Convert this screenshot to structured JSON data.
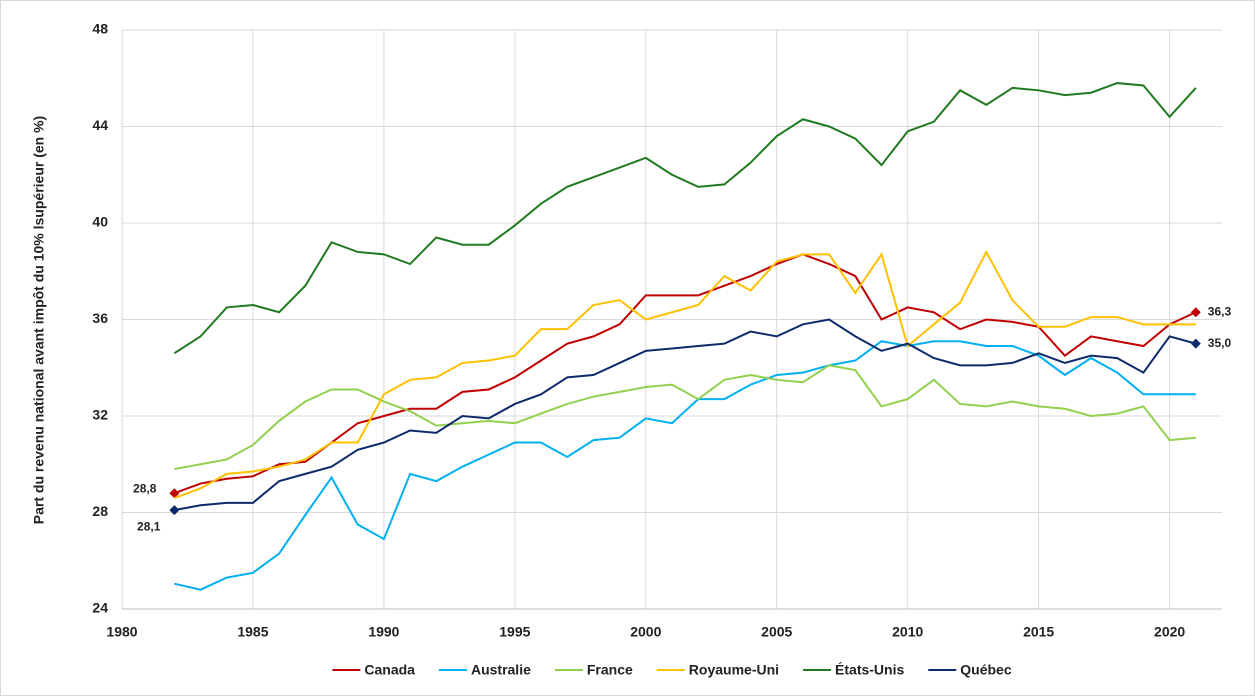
{
  "chart_data": {
    "type": "line",
    "y_label": "Part du revenu national avant impôt du 10% lsupérieur (en %)",
    "x": [
      1982,
      1983,
      1984,
      1985,
      1986,
      1987,
      1988,
      1989,
      1990,
      1991,
      1992,
      1993,
      1994,
      1995,
      1996,
      1997,
      1998,
      1999,
      2000,
      2001,
      2002,
      2003,
      2004,
      2005,
      2006,
      2007,
      2008,
      2009,
      2010,
      2011,
      2012,
      2013,
      2014,
      2015,
      2016,
      2017,
      2018,
      2019,
      2020,
      2021
    ],
    "xlim": [
      1980,
      2022
    ],
    "xticks": [
      1980,
      1985,
      1990,
      1995,
      2000,
      2005,
      2010,
      2015,
      2020
    ],
    "ylim": [
      24,
      48
    ],
    "yticks": [
      24,
      28,
      32,
      36,
      40,
      44,
      48
    ],
    "grid": true,
    "legend": "bottom",
    "series": [
      {
        "name": "Canada",
        "color": "#c00000",
        "values": [
          28.8,
          29.2,
          29.4,
          29.5,
          30.0,
          30.1,
          30.9,
          31.7,
          32.0,
          32.3,
          32.3,
          33.0,
          33.1,
          33.6,
          34.3,
          35.0,
          35.3,
          35.8,
          37.0,
          37.0,
          37.0,
          37.4,
          37.8,
          38.3,
          38.7,
          38.3,
          37.8,
          36.0,
          36.5,
          36.3,
          35.6,
          36.0,
          35.9,
          35.7,
          34.5,
          35.3,
          35.1,
          34.9,
          35.8,
          36.3
        ],
        "value_labels": [
          "28,8",
          null,
          null,
          null,
          null,
          null,
          null,
          null,
          null,
          null,
          null,
          null,
          null,
          null,
          null,
          null,
          null,
          null,
          null,
          null,
          null,
          null,
          null,
          null,
          null,
          null,
          null,
          null,
          null,
          null,
          null,
          null,
          null,
          null,
          null,
          null,
          null,
          null,
          null,
          "36,3"
        ]
      },
      {
        "name": "Australie",
        "color": "#00b0f0",
        "values": [
          25.05,
          24.8,
          25.3,
          25.5,
          26.3,
          27.9,
          29.45,
          27.5,
          26.9,
          29.6,
          29.3,
          29.9,
          30.4,
          30.9,
          30.9,
          30.3,
          31.0,
          31.1,
          31.9,
          31.7,
          32.7,
          32.7,
          33.3,
          33.7,
          33.8,
          34.1,
          34.3,
          35.1,
          34.9,
          35.1,
          35.1,
          34.9,
          34.9,
          34.5,
          33.7,
          34.4,
          33.8,
          32.9,
          32.9,
          32.9
        ]
      },
      {
        "name": "France",
        "color": "#92d050",
        "values": [
          29.8,
          30.0,
          30.2,
          30.8,
          31.8,
          32.6,
          33.1,
          33.1,
          32.6,
          32.2,
          31.6,
          31.7,
          31.8,
          31.7,
          32.1,
          32.5,
          32.8,
          33.0,
          33.2,
          33.3,
          32.7,
          33.5,
          33.7,
          33.5,
          33.4,
          34.1,
          33.9,
          32.4,
          32.7,
          33.5,
          32.5,
          32.4,
          32.6,
          32.4,
          32.3,
          32.0,
          32.1,
          32.4,
          31.0,
          31.1
        ]
      },
      {
        "name": "Royaume-Uni",
        "color": "#ffc000",
        "values": [
          28.6,
          29.0,
          29.6,
          29.7,
          29.9,
          30.2,
          30.9,
          30.9,
          32.9,
          33.5,
          33.6,
          34.2,
          34.3,
          34.5,
          35.6,
          35.6,
          36.6,
          36.8,
          36.0,
          36.3,
          36.6,
          37.8,
          37.2,
          38.4,
          38.7,
          38.7,
          37.1,
          38.7,
          34.9,
          35.8,
          36.7,
          38.8,
          36.8,
          35.7,
          35.7,
          36.1,
          36.1,
          35.8,
          35.8,
          35.8
        ]
      },
      {
        "name": "États-Unis",
        "color": "#217a21",
        "values": [
          34.6,
          35.3,
          36.5,
          36.6,
          36.3,
          37.4,
          39.2,
          38.8,
          38.7,
          38.3,
          39.4,
          39.1,
          39.1,
          39.9,
          40.8,
          41.5,
          41.9,
          42.3,
          42.7,
          42.0,
          41.5,
          41.6,
          42.5,
          43.6,
          44.3,
          44.0,
          43.5,
          42.4,
          43.8,
          44.2,
          45.5,
          44.9,
          45.6,
          45.5,
          45.3,
          45.4,
          45.8,
          45.7,
          44.4,
          45.6
        ]
      },
      {
        "name": "Québec",
        "color": "#0d2a6b",
        "values": [
          28.1,
          28.3,
          28.4,
          28.4,
          29.3,
          29.6,
          29.9,
          30.6,
          30.9,
          31.4,
          31.3,
          32.0,
          31.9,
          32.5,
          32.9,
          33.6,
          33.7,
          34.2,
          34.7,
          34.8,
          34.9,
          35.0,
          35.5,
          35.3,
          35.8,
          36.0,
          35.3,
          34.7,
          35.0,
          34.4,
          34.1,
          34.1,
          34.2,
          34.6,
          34.2,
          34.5,
          34.4,
          33.8,
          35.3,
          35.0
        ],
        "value_labels": [
          "28,1",
          null,
          null,
          null,
          null,
          null,
          null,
          null,
          null,
          null,
          null,
          null,
          null,
          null,
          null,
          null,
          null,
          null,
          null,
          null,
          null,
          null,
          null,
          null,
          null,
          null,
          null,
          null,
          null,
          null,
          null,
          null,
          null,
          null,
          null,
          null,
          null,
          null,
          null,
          "35,0"
        ]
      }
    ]
  }
}
